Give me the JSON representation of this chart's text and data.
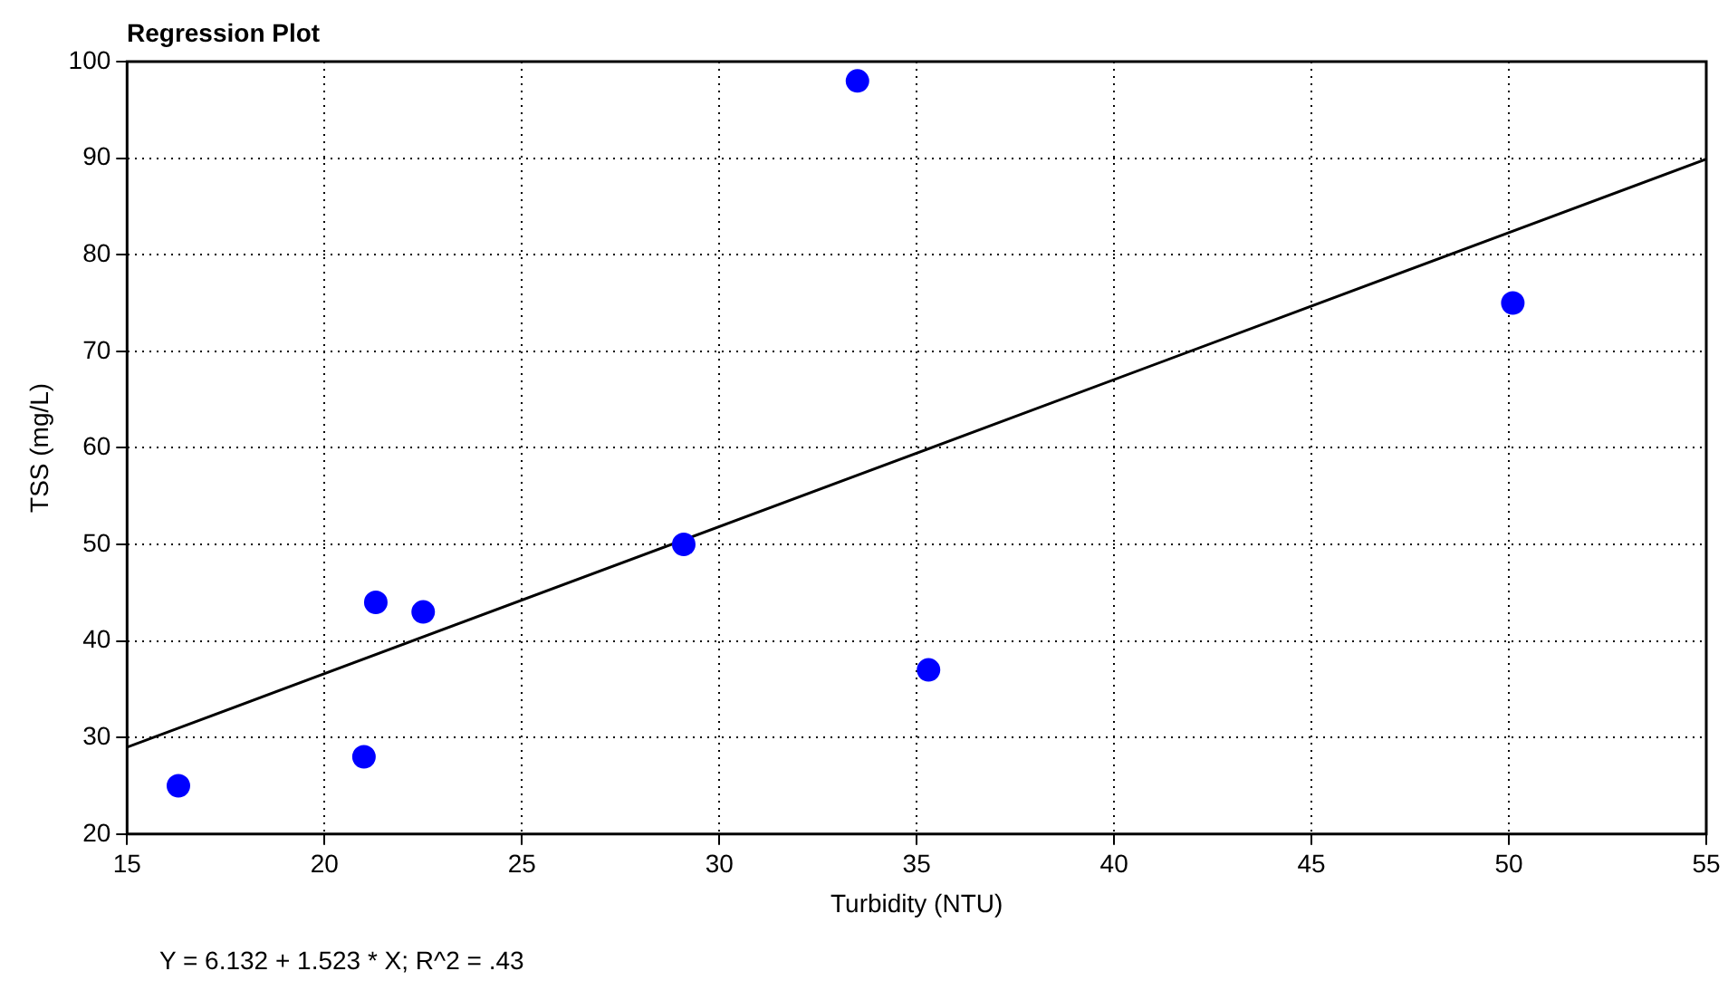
{
  "chart_data": {
    "type": "scatter",
    "title": "Regression Plot",
    "xlabel": "Turbidity (NTU)",
    "ylabel": "TSS (mg/L)",
    "xlim": [
      15,
      55
    ],
    "xticks": [
      15,
      20,
      25,
      30,
      35,
      40,
      45,
      50,
      55
    ],
    "ylim": [
      20,
      100
    ],
    "yticks": [
      20,
      30,
      40,
      50,
      60,
      70,
      80,
      90,
      100
    ],
    "grid": true,
    "series": [
      {
        "type": "scatter",
        "marker": "circle",
        "color": "#0000ff",
        "x": [
          16.3,
          21.0,
          21.3,
          22.5,
          29.1,
          33.5,
          35.3,
          50.1
        ],
        "values": [
          25,
          28,
          44,
          43,
          50,
          98,
          37,
          75
        ]
      },
      {
        "type": "line",
        "color": "#000000",
        "x": [
          15,
          55
        ],
        "values": [
          29,
          89.9
        ]
      }
    ],
    "annotations": [
      "Y = 6.132 + 1.523 * X; R^2 = .43"
    ]
  }
}
